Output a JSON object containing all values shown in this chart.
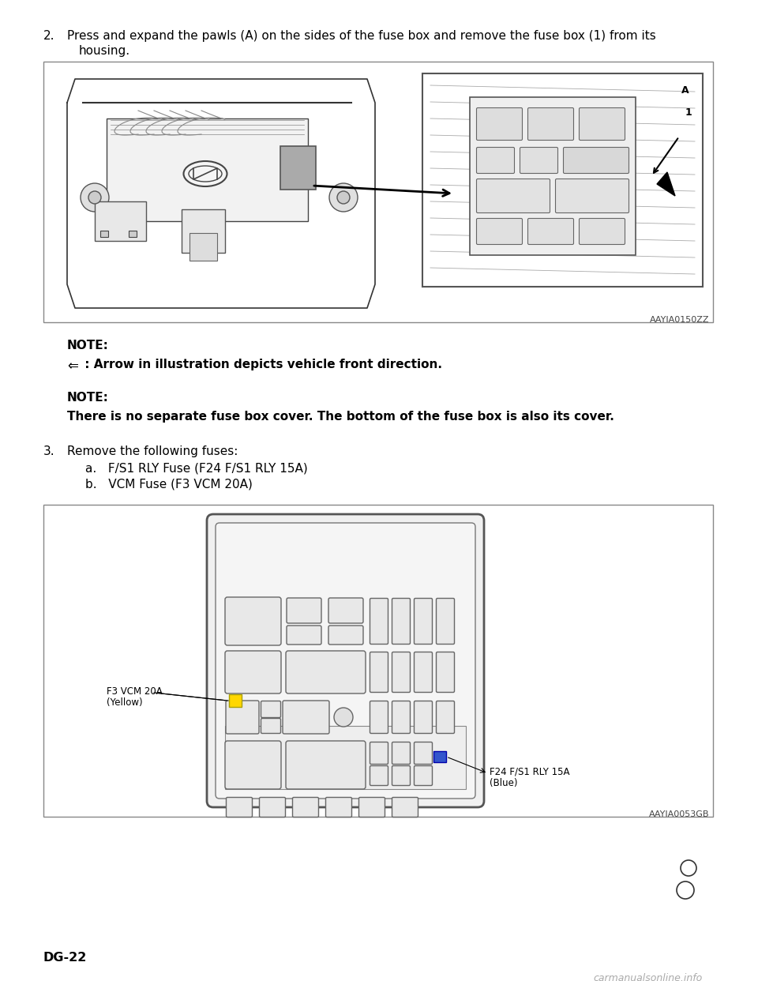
{
  "bg_color": "#ffffff",
  "page_number": "DG-22",
  "watermark": "carmanualsonline.info",
  "diagram1_code": "AAYIA0150ZZ",
  "diagram2_code": "AAYIA0053GB",
  "step2_line1": "2.   Press and expand the pawls (A) on the sides of the fuse box and remove the fuse box (1) from its",
  "step2_line2": "      housing.",
  "note1_label": "NOTE:",
  "note1_arrow": "⇐",
  "note1_text": " : Arrow in illustration depicts vehicle front direction.",
  "note2_label": "NOTE:",
  "note2_text": "There is no separate fuse box cover. The bottom of the fuse box is also its cover.",
  "step3_head": "3.   Remove the following fuses:",
  "step3a": "a.   F/S1 RLY Fuse (F24 F/S1 RLY 15A)",
  "step3b": "b.   VCM Fuse (F3 VCM 20A)",
  "vcm_label_line1": "F3 VCM 20A",
  "vcm_label_line2": "(Yellow)",
  "f24_label_line1": "F24 F/S1 RLY 15A",
  "f24_label_line2": "(Blue)",
  "fuse_color_vcm": "#FFD700",
  "fuse_color_f24": "#3355cc",
  "fuse_ec_vcm": "#aaa000",
  "fuse_ec_f24": "#0000aa",
  "line_color": "#555555",
  "diagram_border": "#888888",
  "text_color": "#000000",
  "gray_light": "#e8e8e8",
  "gray_medium": "#cccccc",
  "gray_dark": "#aaaaaa"
}
